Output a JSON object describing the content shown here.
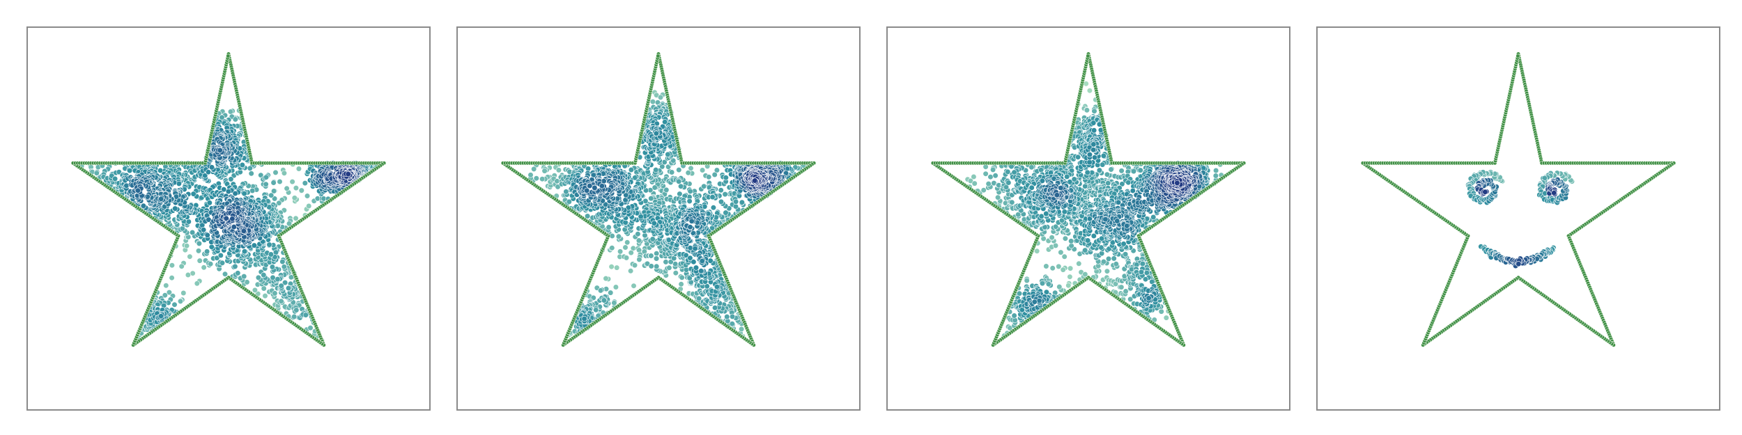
{
  "figure": {
    "background": "#ffffff",
    "frame_color": "#8a8a8a"
  },
  "chart_data": [
    {
      "type": "scatter",
      "panel": 1,
      "title": "",
      "xlabel": "",
      "ylabel": "",
      "xlim": [
        -1.2,
        1.2
      ],
      "ylim": [
        -1.1,
        1.1
      ],
      "grid": false,
      "legend": "none",
      "boundary": {
        "shape": "five-point star",
        "color": "#3f8f45",
        "vertices": [
          [
            0,
            0.95
          ],
          [
            0.14,
            0.32
          ],
          [
            0.93,
            0.32
          ],
          [
            0.3,
            -0.1
          ],
          [
            0.57,
            -0.73
          ],
          [
            0,
            -0.34
          ],
          [
            -0.57,
            -0.73
          ],
          [
            -0.3,
            -0.1
          ],
          [
            -0.93,
            0.32
          ],
          [
            -0.14,
            0.32
          ]
        ]
      },
      "colormap": {
        "low": "#a6dcc0",
        "mid": "#2f8fa0",
        "high": "#233a83"
      },
      "density_clusters": [
        {
          "x": -0.5,
          "y": 0.16,
          "spread": 0.2,
          "weight": 1.0
        },
        {
          "x": 0.08,
          "y": -0.03,
          "spread": 0.17,
          "weight": 0.8
        },
        {
          "x": 0.72,
          "y": 0.27,
          "spread": 0.12,
          "weight": 0.9
        },
        {
          "x": -0.08,
          "y": 0.42,
          "spread": 0.12,
          "weight": 0.5
        },
        {
          "x": 0.45,
          "y": -0.42,
          "spread": 0.17,
          "weight": 0.45
        },
        {
          "x": -0.48,
          "y": -0.55,
          "spread": 0.1,
          "weight": 0.25
        }
      ]
    },
    {
      "type": "scatter",
      "panel": 2,
      "title": "",
      "xlabel": "",
      "ylabel": "",
      "xlim": [
        -1.2,
        1.2
      ],
      "ylim": [
        -1.1,
        1.1
      ],
      "grid": false,
      "legend": "none",
      "boundary": {
        "shape": "five-point star",
        "color": "#3f8f45",
        "vertices": [
          [
            0,
            0.95
          ],
          [
            0.14,
            0.32
          ],
          [
            0.93,
            0.32
          ],
          [
            0.3,
            -0.1
          ],
          [
            0.57,
            -0.73
          ],
          [
            0,
            -0.34
          ],
          [
            -0.57,
            -0.73
          ],
          [
            -0.3,
            -0.1
          ],
          [
            -0.93,
            0.32
          ],
          [
            -0.14,
            0.32
          ]
        ]
      },
      "colormap": {
        "low": "#a6dcc0",
        "mid": "#2f8fa0",
        "high": "#233a83"
      },
      "density_clusters": [
        {
          "x": -0.35,
          "y": 0.18,
          "spread": 0.2,
          "weight": 1.0
        },
        {
          "x": 0.15,
          "y": -0.05,
          "spread": 0.18,
          "weight": 0.8
        },
        {
          "x": 0.62,
          "y": 0.25,
          "spread": 0.12,
          "weight": 0.9
        },
        {
          "x": 0.02,
          "y": 0.5,
          "spread": 0.13,
          "weight": 0.5
        },
        {
          "x": 0.4,
          "y": -0.45,
          "spread": 0.17,
          "weight": 0.45
        },
        {
          "x": -0.45,
          "y": -0.55,
          "spread": 0.12,
          "weight": 0.35
        }
      ]
    },
    {
      "type": "scatter",
      "panel": 3,
      "title": "",
      "xlabel": "",
      "ylabel": "",
      "xlim": [
        -1.2,
        1.2
      ],
      "ylim": [
        -1.1,
        1.1
      ],
      "grid": false,
      "legend": "none",
      "boundary": {
        "shape": "five-point star",
        "color": "#3f8f45",
        "vertices": [
          [
            0,
            0.95
          ],
          [
            0.14,
            0.32
          ],
          [
            0.93,
            0.32
          ],
          [
            0.3,
            -0.1
          ],
          [
            0.57,
            -0.73
          ],
          [
            0,
            -0.34
          ],
          [
            -0.57,
            -0.73
          ],
          [
            -0.3,
            -0.1
          ],
          [
            -0.93,
            0.32
          ],
          [
            -0.14,
            0.32
          ]
        ]
      },
      "colormap": {
        "low": "#a6dcc0",
        "mid": "#2f8fa0",
        "high": "#233a83"
      },
      "density_clusters": [
        {
          "x": -0.25,
          "y": 0.17,
          "spread": 0.2,
          "weight": 1.0
        },
        {
          "x": 0.15,
          "y": 0.0,
          "spread": 0.18,
          "weight": 0.8
        },
        {
          "x": 0.52,
          "y": 0.23,
          "spread": 0.12,
          "weight": 0.9
        },
        {
          "x": 0.08,
          "y": 0.48,
          "spread": 0.12,
          "weight": 0.5
        },
        {
          "x": 0.3,
          "y": -0.42,
          "spread": 0.17,
          "weight": 0.45
        },
        {
          "x": -0.3,
          "y": -0.55,
          "spread": 0.13,
          "weight": 0.45
        }
      ]
    },
    {
      "type": "scatter",
      "panel": 4,
      "title": "",
      "xlabel": "",
      "ylabel": "",
      "xlim": [
        -1.2,
        1.2
      ],
      "ylim": [
        -1.1,
        1.1
      ],
      "grid": false,
      "legend": "none",
      "boundary": {
        "shape": "five-point star",
        "color": "#3f8f45",
        "vertices": [
          [
            0,
            0.95
          ],
          [
            0.14,
            0.32
          ],
          [
            0.93,
            0.32
          ],
          [
            0.3,
            -0.1
          ],
          [
            0.57,
            -0.73
          ],
          [
            0,
            -0.34
          ],
          [
            -0.57,
            -0.73
          ],
          [
            -0.3,
            -0.1
          ],
          [
            -0.93,
            0.32
          ],
          [
            -0.14,
            0.32
          ]
        ]
      },
      "colormap": {
        "low": "#a6dcc0",
        "mid": "#2f8fa0",
        "high": "#233a83"
      },
      "features": [
        {
          "name": "left-eye",
          "shape": "spiral",
          "x": -0.2,
          "y": 0.17,
          "radius": 0.11
        },
        {
          "name": "right-eye",
          "shape": "spiral",
          "x": 0.22,
          "y": 0.17,
          "radius": 0.11
        },
        {
          "name": "smile",
          "shape": "arc",
          "x": 0.0,
          "y": -0.17,
          "half_width": 0.21,
          "depth": 0.08
        }
      ]
    }
  ]
}
